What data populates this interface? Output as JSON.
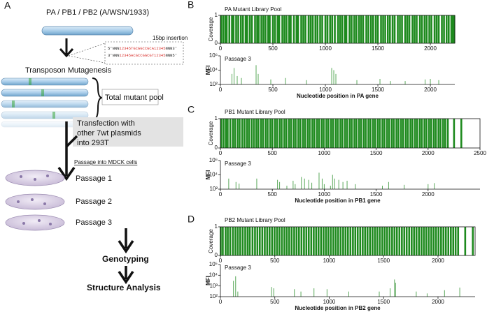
{
  "panel_a": {
    "label": "A",
    "title": "PA / PB1 / PB2 (A/WSN/1933)",
    "insertion_label": "15bp insertion",
    "sequence_top": [
      "5'NNN",
      "12345TGCGGCCGCA12345",
      "NNN3'"
    ],
    "sequence_bottom": [
      "3'NNN",
      "12345ACGCCGGCGT12345",
      "NNN5'"
    ],
    "mutagenesis": "Transposon Mutagenesis",
    "pool": "Total mutant pool",
    "transfection": [
      "Transfection with",
      "other 7wt plasmids",
      "into 293T"
    ],
    "passage_header": "Passage into MDCK cells",
    "passages": [
      "Passage 1",
      "Passage 2",
      "Passage 3"
    ],
    "genotyping": "Genotyping",
    "structure": "Structure Analysis"
  },
  "panel_labels": [
    "B",
    "C",
    "D"
  ],
  "chart_data": [
    {
      "type": "bar",
      "title": "PA Mutant Library Pool",
      "ylabel": "Coverage",
      "color": "#1e8a1e",
      "xlim": [
        0,
        2233
      ],
      "xticks": [
        0,
        500,
        1000,
        1500,
        2000
      ],
      "ylim": [
        0,
        1
      ],
      "yticks": [
        0,
        1
      ],
      "x": [
        5,
        25,
        45,
        60,
        85,
        110,
        125,
        150,
        170,
        195,
        215,
        240,
        255,
        280,
        300,
        330,
        350,
        365,
        390,
        410,
        430,
        455,
        470,
        500,
        520,
        545,
        560,
        590,
        610,
        630,
        655,
        670,
        700,
        725,
        740,
        770,
        790,
        810,
        840,
        860,
        880,
        905,
        925,
        950,
        970,
        1000,
        1020,
        1045,
        1065,
        1090,
        1120,
        1140,
        1160,
        1185,
        1200,
        1230,
        1250,
        1275,
        1295,
        1320,
        1340,
        1360,
        1390,
        1410,
        1435,
        1455,
        1480,
        1500,
        1530,
        1550,
        1570,
        1595,
        1615,
        1640,
        1660,
        1690,
        1710,
        1730,
        1760,
        1780,
        1800,
        1830,
        1850,
        1870,
        1900,
        1920,
        1945,
        1965,
        1990,
        2010,
        2040,
        2060,
        2080,
        2110,
        2130,
        2155,
        2175,
        2200,
        2215,
        2228
      ],
      "values": [
        1,
        1,
        1,
        1,
        1,
        1,
        1,
        1,
        1,
        1,
        1,
        1,
        1,
        1,
        1,
        1,
        1,
        1,
        1,
        1,
        1,
        1,
        1,
        1,
        1,
        1,
        1,
        1,
        1,
        1,
        1,
        1,
        1,
        1,
        1,
        1,
        1,
        1,
        1,
        1,
        1,
        1,
        1,
        1,
        1,
        1,
        1,
        1,
        1,
        1,
        1,
        1,
        1,
        1,
        1,
        1,
        1,
        1,
        1,
        1,
        1,
        1,
        1,
        1,
        1,
        1,
        1,
        1,
        1,
        1,
        1,
        1,
        1,
        1,
        1,
        1,
        1,
        1,
        1,
        1,
        1,
        1,
        1,
        1,
        1,
        1,
        1,
        1,
        1,
        1,
        1,
        1,
        1,
        1,
        1,
        1,
        1,
        1,
        1,
        1
      ]
    },
    {
      "type": "bar",
      "title": "Passage 3",
      "ylabel": "MFI",
      "xlabel": "Nucleotide position in PA gene",
      "color": "#5aa85a",
      "log_scale": true,
      "xlim": [
        0,
        2233
      ],
      "xticks": [
        0,
        500,
        1000,
        1500,
        2000
      ],
      "ylim": [
        100,
        1000000
      ],
      "yticks": [
        {
          "value": 100,
          "label": "10²"
        },
        {
          "value": 10000,
          "label": "10⁴"
        },
        {
          "value": 1000000,
          "label": "10⁶"
        }
      ],
      "x": [
        110,
        130,
        160,
        200,
        340,
        360,
        480,
        620,
        820,
        1060,
        1080,
        1100,
        1300,
        1520,
        1620,
        1760,
        1950,
        2000,
        2080
      ],
      "values": [
        3000,
        20000,
        1500,
        800,
        50000,
        3000,
        500,
        800,
        400,
        20000,
        10000,
        3000,
        400,
        600,
        300,
        300,
        500,
        600,
        400
      ]
    },
    {
      "type": "bar",
      "title": "PB1 Mutant Library Pool",
      "ylabel": "Coverage",
      "color": "#1e8a1e",
      "xlim": [
        0,
        2500
      ],
      "xticks": [
        0,
        500,
        1000,
        1500,
        2000,
        2500
      ],
      "ylim": [
        0,
        1
      ],
      "yticks": [
        0,
        1
      ],
      "x": [
        8,
        30,
        52,
        70,
        95,
        120,
        140,
        165,
        185,
        210,
        232,
        255,
        275,
        300,
        322,
        345,
        365,
        390,
        410,
        435,
        455,
        480,
        500,
        525,
        545,
        570,
        590,
        615,
        635,
        660,
        680,
        705,
        725,
        750,
        770,
        795,
        815,
        840,
        860,
        885,
        905,
        930,
        950,
        975,
        995,
        1020,
        1040,
        1065,
        1085,
        1110,
        1130,
        1155,
        1175,
        1200,
        1220,
        1245,
        1265,
        1290,
        1310,
        1335,
        1355,
        1380,
        1400,
        1425,
        1445,
        1470,
        1490,
        1515,
        1535,
        1560,
        1580,
        1605,
        1625,
        1650,
        1670,
        1695,
        1715,
        1740,
        1760,
        1785,
        1805,
        1830,
        1850,
        1875,
        1895,
        1920,
        1940,
        1965,
        1985,
        2010,
        2030,
        2055,
        2075,
        2100,
        2120,
        2145,
        2165,
        2190,
        2250,
        2320
      ],
      "values": [
        1,
        1,
        1,
        1,
        1,
        1,
        1,
        1,
        1,
        1,
        1,
        1,
        1,
        1,
        1,
        1,
        1,
        1,
        1,
        1,
        1,
        1,
        1,
        1,
        1,
        1,
        1,
        1,
        1,
        1,
        1,
        1,
        1,
        1,
        1,
        1,
        1,
        1,
        1,
        1,
        1,
        1,
        1,
        1,
        1,
        1,
        1,
        1,
        1,
        1,
        1,
        1,
        1,
        1,
        1,
        1,
        1,
        1,
        1,
        1,
        1,
        1,
        1,
        1,
        1,
        1,
        1,
        1,
        1,
        1,
        1,
        1,
        1,
        1,
        1,
        1,
        1,
        1,
        1,
        1,
        1,
        1,
        1,
        1,
        1,
        1,
        1,
        1,
        1,
        1,
        1,
        1,
        1,
        1,
        1,
        1,
        1,
        1,
        1,
        1
      ]
    },
    {
      "type": "bar",
      "title": "Passage 3",
      "ylabel": "MFI",
      "xlabel": "Nucleotide position in PB1 gene",
      "color": "#5aa85a",
      "log_scale": true,
      "xlim": [
        0,
        2500
      ],
      "xticks": [
        0,
        500,
        1000,
        1500,
        2000
      ],
      "ylim": [
        100,
        1000000
      ],
      "yticks": [
        {
          "value": 100,
          "label": "10²"
        },
        {
          "value": 10000,
          "label": "10⁴"
        },
        {
          "value": 1000000,
          "label": "10⁶"
        }
      ],
      "x": [
        80,
        150,
        180,
        350,
        550,
        570,
        640,
        700,
        720,
        780,
        810,
        850,
        880,
        950,
        980,
        1000,
        1060,
        1080,
        1100,
        1140,
        1180,
        1220,
        1300,
        1560,
        1620,
        1770,
        2000,
        2060
      ],
      "values": [
        3000,
        1000,
        600,
        3000,
        2000,
        1000,
        300,
        1500,
        500,
        5000,
        3000,
        2000,
        800,
        20000,
        3000,
        500,
        300,
        10000,
        3000,
        2000,
        1000,
        1500,
        500,
        300,
        1000,
        400,
        500,
        700
      ]
    },
    {
      "type": "bar",
      "title": "PB2 Mutant Library Pool",
      "ylabel": "Coverage",
      "color": "#1e8a1e",
      "xlim": [
        0,
        2341
      ],
      "xticks": [
        0,
        500,
        1000,
        1500,
        2000
      ],
      "ylim": [
        0,
        1
      ],
      "yticks": [
        0,
        1
      ],
      "x": [
        3,
        22,
        48,
        68,
        90,
        115,
        138,
        160,
        182,
        205,
        228,
        250,
        270,
        295,
        318,
        340,
        362,
        385,
        408,
        430,
        452,
        475,
        498,
        520,
        542,
        565,
        588,
        610,
        632,
        655,
        678,
        700,
        722,
        745,
        768,
        790,
        812,
        835,
        858,
        880,
        902,
        925,
        948,
        970,
        992,
        1015,
        1038,
        1060,
        1082,
        1105,
        1128,
        1150,
        1172,
        1195,
        1218,
        1240,
        1262,
        1285,
        1308,
        1330,
        1352,
        1375,
        1398,
        1420,
        1442,
        1465,
        1488,
        1510,
        1532,
        1555,
        1578,
        1600,
        1622,
        1645,
        1668,
        1690,
        1712,
        1735,
        1758,
        1780,
        1802,
        1825,
        1848,
        1870,
        1892,
        1915,
        1938,
        1960,
        1982,
        2005,
        2028,
        2050,
        2072,
        2095,
        2118,
        2140,
        2162,
        2185,
        2250,
        2320
      ],
      "values": [
        1,
        1,
        1,
        1,
        1,
        1,
        1,
        1,
        1,
        1,
        1,
        1,
        1,
        1,
        1,
        1,
        1,
        1,
        1,
        1,
        1,
        1,
        1,
        1,
        1,
        1,
        1,
        1,
        1,
        1,
        1,
        1,
        1,
        1,
        1,
        1,
        1,
        1,
        1,
        1,
        1,
        1,
        1,
        1,
        1,
        1,
        1,
        1,
        1,
        1,
        1,
        1,
        1,
        1,
        1,
        1,
        1,
        1,
        1,
        1,
        1,
        1,
        1,
        1,
        1,
        1,
        1,
        1,
        1,
        1,
        1,
        1,
        1,
        1,
        1,
        1,
        1,
        1,
        1,
        1,
        1,
        1,
        1,
        1,
        1,
        1,
        1,
        1,
        1,
        1,
        1,
        1,
        1,
        1,
        1,
        1,
        1,
        1,
        1,
        1
      ]
    },
    {
      "type": "bar",
      "title": "Passage 3",
      "ylabel": "MFI",
      "xlabel": "Nucleotide position in PB2 gene",
      "color": "#5aa85a",
      "log_scale": true,
      "xlim": [
        0,
        2341
      ],
      "xticks": [
        0,
        500,
        1000,
        1500,
        2000
      ],
      "ylim": [
        100,
        100000
      ],
      "yticks": [
        {
          "value": 100,
          "label": "10²"
        },
        {
          "value": 1000,
          "label": "10³"
        },
        {
          "value": 10000,
          "label": "10⁴"
        },
        {
          "value": 100000,
          "label": "10⁵"
        }
      ],
      "x": [
        120,
        140,
        160,
        470,
        490,
        680,
        740,
        860,
        980,
        1180,
        1460,
        1560,
        1600,
        1610,
        1800,
        1900,
        2060,
        2200
      ],
      "values": [
        3000,
        8000,
        300,
        800,
        600,
        500,
        300,
        600,
        500,
        300,
        300,
        600,
        4000,
        2000,
        300,
        200,
        400,
        700
      ]
    }
  ]
}
